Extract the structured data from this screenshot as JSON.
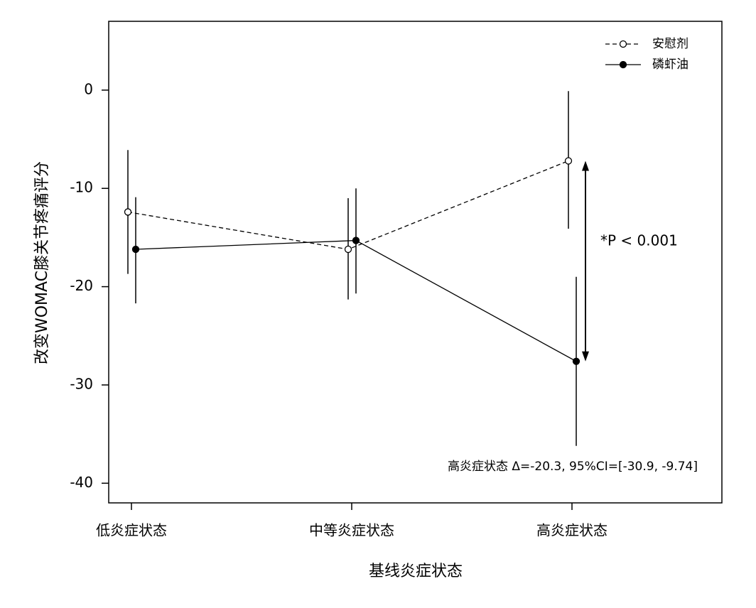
{
  "chart_data": {
    "type": "line",
    "y_label": "改变WOMAC膝关节疼痛评分",
    "x_label": "基线炎症状态",
    "categories": [
      "低炎症状态",
      "中等炎症状态",
      "高炎症状态"
    ],
    "ylim": [
      -42,
      7
    ],
    "yticks": [
      0,
      -10,
      -20,
      -30,
      -40
    ],
    "series": [
      {
        "name": "安慰剂",
        "color": "#000000",
        "dashed": true,
        "filled": false,
        "values": [
          -12.4,
          -16.2,
          -7.2
        ],
        "lower": [
          -18.7,
          -21.3,
          -14.1
        ],
        "upper": [
          -6.1,
          -11.0,
          -0.1
        ]
      },
      {
        "name": "磷虾油",
        "color": "#000000",
        "dashed": false,
        "filled": true,
        "values": [
          -16.2,
          -15.3,
          -27.6
        ],
        "lower": [
          -21.7,
          -20.7,
          -36.2
        ],
        "upper": [
          -10.9,
          -10.0,
          -19.0
        ]
      }
    ],
    "legend": "top-right",
    "annotations": [
      "*P < 0.001",
      "高炎症状态 Δ=-20.3, 95%CI=[-30.9, -9.74]"
    ]
  }
}
